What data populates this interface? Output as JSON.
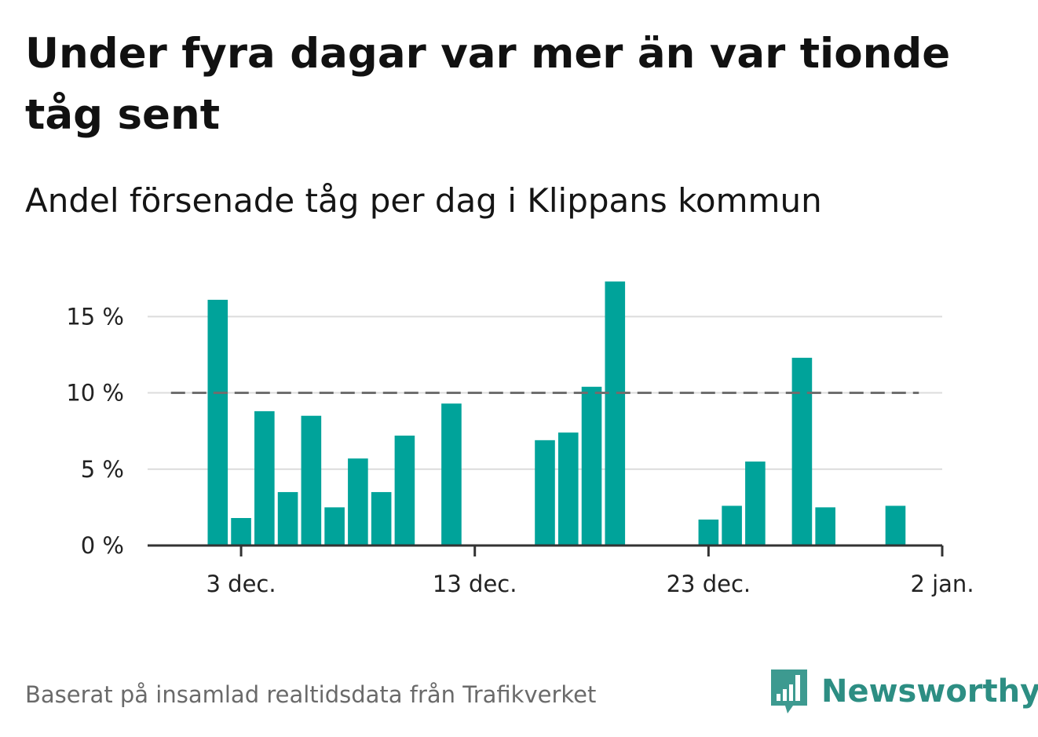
{
  "header": {
    "title": "Under fyra dagar var mer än var tionde tåg sent",
    "subtitle": "Andel försenade tåg per dag i Klippans kommun"
  },
  "footer": {
    "source": "Baserat på insamlad realtidsdata från Trafikverket",
    "brand": "Newsworthy",
    "logo_icon": "bar-chart-speech-bubble-icon"
  },
  "colors": {
    "bar": "#00a39a",
    "reference_line": "#6e6e6e",
    "grid": "#dcdcdc",
    "axis": "#333333",
    "brand": "#2d8e83"
  },
  "chart_data": {
    "type": "bar",
    "title": "Andel försenade tåg per dag i Klippans kommun",
    "xlabel": "",
    "ylabel": "",
    "x_axis": {
      "type": "date",
      "range": [
        "2020-11-29",
        "2021-01-02"
      ],
      "ticks": [
        {
          "date": "2020-12-03",
          "label": "3 dec."
        },
        {
          "date": "2020-12-13",
          "label": "13 dec."
        },
        {
          "date": "2020-12-23",
          "label": "23 dec."
        },
        {
          "date": "2021-01-02",
          "label": "2 jan."
        }
      ]
    },
    "y_axis": {
      "range": [
        0,
        18
      ],
      "ticks": [
        {
          "value": 0,
          "label": "0 %"
        },
        {
          "value": 5,
          "label": "5 %"
        },
        {
          "value": 10,
          "label": "10 %"
        },
        {
          "value": 15,
          "label": "15 %"
        }
      ],
      "grid": true
    },
    "reference_line": {
      "value": 10,
      "style": "dashed",
      "from": "2020-11-30",
      "to": "2021-01-01"
    },
    "series": [
      {
        "values": [
          {
            "date": "2020-12-02",
            "value": 16.1
          },
          {
            "date": "2020-12-03",
            "value": 1.8
          },
          {
            "date": "2020-12-04",
            "value": 8.8
          },
          {
            "date": "2020-12-05",
            "value": 3.5
          },
          {
            "date": "2020-12-06",
            "value": 8.5
          },
          {
            "date": "2020-12-07",
            "value": 2.5
          },
          {
            "date": "2020-12-08",
            "value": 5.7
          },
          {
            "date": "2020-12-09",
            "value": 3.5
          },
          {
            "date": "2020-12-10",
            "value": 7.2
          },
          {
            "date": "2020-12-12",
            "value": 9.3
          },
          {
            "date": "2020-12-16",
            "value": 6.9
          },
          {
            "date": "2020-12-17",
            "value": 7.4
          },
          {
            "date": "2020-12-18",
            "value": 10.4
          },
          {
            "date": "2020-12-19",
            "value": 17.3
          },
          {
            "date": "2020-12-23",
            "value": 1.7
          },
          {
            "date": "2020-12-24",
            "value": 2.6
          },
          {
            "date": "2020-12-25",
            "value": 5.5
          },
          {
            "date": "2020-12-27",
            "value": 12.3
          },
          {
            "date": "2020-12-28",
            "value": 2.5
          },
          {
            "date": "2020-12-31",
            "value": 2.6
          }
        ]
      }
    ]
  }
}
